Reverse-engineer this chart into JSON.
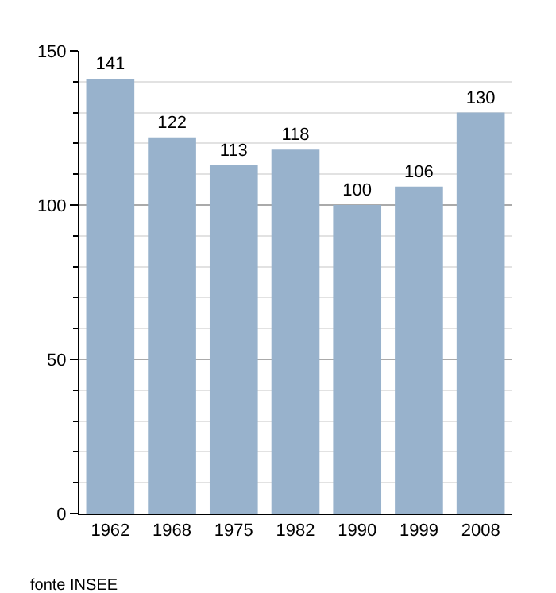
{
  "chart_data": {
    "type": "bar",
    "categories": [
      "1962",
      "1968",
      "1975",
      "1982",
      "1990",
      "1999",
      "2008"
    ],
    "values": [
      141,
      122,
      113,
      118,
      100,
      106,
      130
    ],
    "color": "#98b2cc",
    "ylim": [
      0,
      150
    ],
    "yticks": [
      0,
      {
        "value": 10,
        "label": null
      },
      {
        "value": 20,
        "label": null
      },
      {
        "value": 30,
        "label": null
      },
      {
        "value": 40,
        "label": null
      },
      50,
      {
        "value": 60,
        "label": null
      },
      {
        "value": 70,
        "label": null
      },
      {
        "value": 80,
        "label": null
      },
      {
        "value": 90,
        "label": null
      },
      100,
      {
        "value": 110,
        "label": null
      },
      {
        "value": 120,
        "label": null
      },
      {
        "value": 130,
        "label": null
      },
      {
        "value": 140,
        "label": null
      },
      150
    ],
    "grid": "y",
    "data_labels": true,
    "annotations": [
      "fonte INSEE"
    ]
  }
}
